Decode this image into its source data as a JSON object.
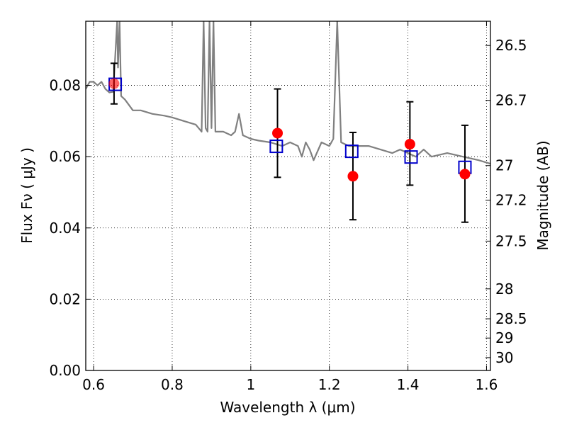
{
  "chart_data": {
    "type": "scatter",
    "xlabel": "Wavelength  λ (μm)",
    "ylabel": "Flux  Fν  ( μJy )",
    "y2label": "Magnitude (AB)",
    "xlim": [
      0.58,
      1.61
    ],
    "ylim": [
      0.0,
      0.098
    ],
    "xticks": [
      {
        "value": 0.6,
        "label": "0.6"
      },
      {
        "value": 0.8,
        "label": "0.8"
      },
      {
        "value": 1.0,
        "label": "1"
      },
      {
        "value": 1.2,
        "label": "1.2"
      },
      {
        "value": 1.4,
        "label": "1.4"
      },
      {
        "value": 1.6,
        "label": "1.6"
      }
    ],
    "yticks": [
      {
        "value": 0.0,
        "label": "0.00"
      },
      {
        "value": 0.02,
        "label": "0.02"
      },
      {
        "value": 0.04,
        "label": "0.04"
      },
      {
        "value": 0.06,
        "label": "0.06"
      },
      {
        "value": 0.08,
        "label": "0.08"
      }
    ],
    "y2ticks": [
      {
        "label": "26.5",
        "flux": 0.0912
      },
      {
        "label": "26.7",
        "flux": 0.0758
      },
      {
        "label": "27",
        "flux": 0.0575
      },
      {
        "label": "27.2",
        "flux": 0.0478
      },
      {
        "label": "27.5",
        "flux": 0.0363
      },
      {
        "label": "28",
        "flux": 0.0229
      },
      {
        "label": "28.5",
        "flux": 0.0145
      },
      {
        "label": "29",
        "flux": 0.0091
      },
      {
        "label": "30",
        "flux": 0.0036
      }
    ],
    "grid": true,
    "colors": {
      "spectrum": "#808080",
      "observed": "#ff0000",
      "model": "#0000cc",
      "errorbar": "#000000",
      "grid": "#000000"
    },
    "spectrum": {
      "x": [
        0.58,
        0.59,
        0.6,
        0.61,
        0.62,
        0.63,
        0.64,
        0.65,
        0.66,
        0.662,
        0.666,
        0.67,
        0.68,
        0.7,
        0.72,
        0.75,
        0.78,
        0.8,
        0.83,
        0.86,
        0.875,
        0.88,
        0.885,
        0.89,
        0.895,
        0.9,
        0.905,
        0.91,
        0.93,
        0.95,
        0.96,
        0.97,
        0.98,
        1.0,
        1.02,
        1.05,
        1.08,
        1.1,
        1.12,
        1.13,
        1.14,
        1.15,
        1.16,
        1.18,
        1.2,
        1.21,
        1.22,
        1.23,
        1.25,
        1.27,
        1.3,
        1.33,
        1.36,
        1.38,
        1.4,
        1.42,
        1.44,
        1.46,
        1.5,
        1.54,
        1.58,
        1.61
      ],
      "y": [
        0.079,
        0.081,
        0.081,
        0.08,
        0.081,
        0.079,
        0.078,
        0.0782,
        0.098,
        0.085,
        0.098,
        0.077,
        0.076,
        0.073,
        0.073,
        0.072,
        0.0715,
        0.071,
        0.07,
        0.069,
        0.067,
        0.098,
        0.068,
        0.067,
        0.098,
        0.068,
        0.098,
        0.067,
        0.067,
        0.066,
        0.067,
        0.072,
        0.066,
        0.065,
        0.0645,
        0.064,
        0.063,
        0.064,
        0.063,
        0.06,
        0.064,
        0.062,
        0.059,
        0.064,
        0.063,
        0.065,
        0.098,
        0.064,
        0.063,
        0.063,
        0.063,
        0.062,
        0.061,
        0.062,
        0.061,
        0.06,
        0.062,
        0.06,
        0.061,
        0.06,
        0.059,
        0.058
      ]
    },
    "observed": [
      {
        "x": 0.652,
        "y": 0.0805,
        "yerr_low": 0.0748,
        "yerr_high": 0.0862
      },
      {
        "x": 1.068,
        "y": 0.0666,
        "yerr_low": 0.0542,
        "yerr_high": 0.079
      },
      {
        "x": 1.26,
        "y": 0.0545,
        "yerr_low": 0.0423,
        "yerr_high": 0.0668
      },
      {
        "x": 1.405,
        "y": 0.0635,
        "yerr_low": 0.052,
        "yerr_high": 0.0754
      },
      {
        "x": 1.545,
        "y": 0.0551,
        "yerr_low": 0.0416,
        "yerr_high": 0.0688
      }
    ],
    "model": [
      {
        "x": 0.655,
        "y": 0.0803
      },
      {
        "x": 1.065,
        "y": 0.0629
      },
      {
        "x": 1.257,
        "y": 0.0615
      },
      {
        "x": 1.408,
        "y": 0.0599
      },
      {
        "x": 1.545,
        "y": 0.057
      }
    ]
  }
}
